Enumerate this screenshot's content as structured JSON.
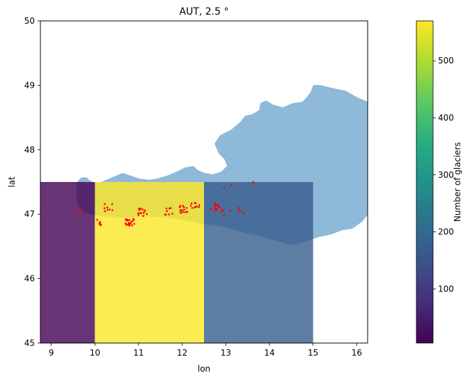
{
  "chart_data": {
    "type": "heatmap",
    "title": "AUT, 2.5 °",
    "xlabel": "lon",
    "ylabel": "lat",
    "xlim": [
      8.75,
      16.25
    ],
    "ylim": [
      45,
      50
    ],
    "xticks": [
      9,
      10,
      11,
      12,
      13,
      14,
      15,
      16
    ],
    "yticks": [
      45,
      46,
      47,
      48,
      49,
      50
    ],
    "cells": [
      {
        "lon_min": 7.5,
        "lon_max": 10.0,
        "lat_min": 45.0,
        "lat_max": 47.5,
        "value": 5
      },
      {
        "lon_min": 10.0,
        "lon_max": 12.5,
        "lat_min": 45.0,
        "lat_max": 47.5,
        "value": 570
      },
      {
        "lon_min": 12.5,
        "lon_max": 15.0,
        "lat_min": 45.0,
        "lat_max": 47.5,
        "value": 170
      }
    ],
    "colorbar": {
      "label": "Number of glaciers",
      "min": 5,
      "max": 570,
      "ticks": [
        100,
        200,
        300,
        400,
        500
      ],
      "colormap": "viridis"
    },
    "country_fill_color": "#8fb9d8",
    "glacier_color": "#ff0000",
    "glacier_clusters": [
      {
        "lon": 9.7,
        "lat": 47.05,
        "count": 4
      },
      {
        "lon": 10.1,
        "lat": 46.88,
        "count": 6
      },
      {
        "lon": 10.3,
        "lat": 47.1,
        "count": 8
      },
      {
        "lon": 10.8,
        "lat": 46.87,
        "count": 22
      },
      {
        "lon": 11.1,
        "lat": 47.03,
        "count": 14
      },
      {
        "lon": 11.7,
        "lat": 47.05,
        "count": 8
      },
      {
        "lon": 12.05,
        "lat": 47.08,
        "count": 14
      },
      {
        "lon": 12.3,
        "lat": 47.12,
        "count": 10
      },
      {
        "lon": 12.75,
        "lat": 47.1,
        "count": 14
      },
      {
        "lon": 13.0,
        "lat": 47.05,
        "count": 5
      },
      {
        "lon": 13.35,
        "lat": 47.05,
        "count": 5
      },
      {
        "lon": 13.05,
        "lat": 47.45,
        "count": 2
      },
      {
        "lon": 13.65,
        "lat": 47.5,
        "count": 2
      }
    ]
  }
}
